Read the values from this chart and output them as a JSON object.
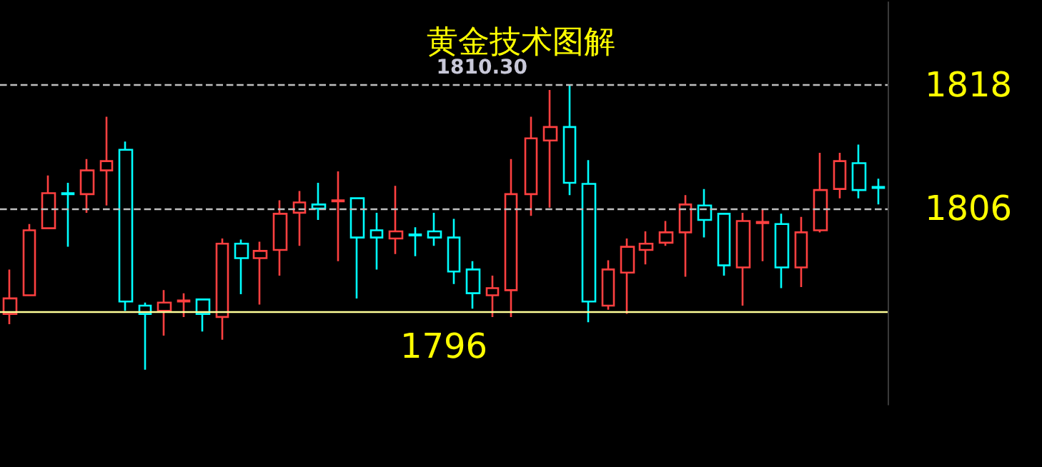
{
  "chart_data": {
    "type": "candlestick",
    "title": "黄金技术图解",
    "categories": [
      null,
      null,
      null,
      null,
      null,
      null,
      null,
      null,
      null,
      null,
      null,
      null,
      null,
      null,
      null,
      null,
      null,
      null,
      null,
      null,
      null,
      null,
      null,
      null,
      null,
      null,
      null,
      null,
      null,
      null,
      null,
      null,
      null,
      null,
      null,
      null,
      null,
      null,
      null,
      null,
      null,
      null,
      null,
      null,
      null,
      null
    ],
    "ohlc": [
      [
        1795.8,
        1800.1,
        1794.8,
        1797.3
      ],
      [
        1797.6,
        1804.5,
        1797.6,
        1803.9
      ],
      [
        1804.1,
        1809.2,
        1804.1,
        1807.5
      ],
      [
        1807.5,
        1808.5,
        1802.3,
        1807.4
      ],
      [
        1807.4,
        1810.8,
        1805.6,
        1809.7
      ],
      [
        1809.7,
        1814.9,
        1806.3,
        1810.6
      ],
      [
        1811.7,
        1812.5,
        1796.1,
        1797.0
      ],
      [
        1796.6,
        1796.9,
        1790.4,
        1795.8
      ],
      [
        1796.1,
        1798.1,
        1793.7,
        1796.9
      ],
      [
        1797.0,
        1797.8,
        1795.5,
        1797.1
      ],
      [
        1797.2,
        1797.3,
        1794.1,
        1795.8
      ],
      [
        1795.5,
        1803.1,
        1793.3,
        1802.6
      ],
      [
        1802.6,
        1803.0,
        1797.7,
        1801.2
      ],
      [
        1801.2,
        1802.8,
        1796.7,
        1801.9
      ],
      [
        1802.0,
        1806.8,
        1799.5,
        1805.5
      ],
      [
        1805.6,
        1807.7,
        1802.4,
        1806.6
      ],
      [
        1806.4,
        1808.5,
        1804.9,
        1806.0
      ],
      [
        1806.7,
        1809.6,
        1800.9,
        1806.8
      ],
      [
        1807.0,
        1807.1,
        1797.3,
        1803.2
      ],
      [
        1803.9,
        1805.6,
        1800.1,
        1803.2
      ],
      [
        1803.1,
        1808.2,
        1801.6,
        1803.8
      ],
      [
        1803.5,
        1804.2,
        1801.4,
        1803.4
      ],
      [
        1803.8,
        1805.6,
        1802.4,
        1803.2
      ],
      [
        1803.2,
        1805.0,
        1798.7,
        1799.9
      ],
      [
        1800.1,
        1800.9,
        1796.3,
        1797.8
      ],
      [
        1797.6,
        1799.5,
        1795.5,
        1798.3
      ],
      [
        1798.1,
        1810.8,
        1795.5,
        1807.4
      ],
      [
        1807.4,
        1814.9,
        1805.3,
        1812.8
      ],
      [
        1812.6,
        1817.5,
        1806.1,
        1813.9
      ],
      [
        1813.9,
        1818.0,
        1807.3,
        1808.5
      ],
      [
        1808.4,
        1810.7,
        1795.0,
        1797.0
      ],
      [
        1796.6,
        1801.0,
        1796.2,
        1800.1
      ],
      [
        1799.8,
        1803.1,
        1795.8,
        1802.3
      ],
      [
        1802.0,
        1803.8,
        1800.6,
        1802.6
      ],
      [
        1802.7,
        1804.8,
        1802.4,
        1803.7
      ],
      [
        1803.7,
        1807.3,
        1799.4,
        1806.4
      ],
      [
        1806.3,
        1807.9,
        1803.2,
        1804.9
      ],
      [
        1805.5,
        1805.6,
        1799.5,
        1800.5
      ],
      [
        1800.3,
        1805.6,
        1796.6,
        1804.8
      ],
      [
        1804.6,
        1805.9,
        1800.9,
        1804.7
      ],
      [
        1804.5,
        1805.5,
        1798.3,
        1800.3
      ],
      [
        1800.3,
        1805.2,
        1798.4,
        1803.7
      ],
      [
        1803.9,
        1811.4,
        1803.7,
        1807.8
      ],
      [
        1807.9,
        1811.4,
        1807.0,
        1810.6
      ],
      [
        1810.4,
        1812.2,
        1807.0,
        1807.8
      ],
      [
        1808.1,
        1808.9,
        1806.4,
        1808.0
      ]
    ],
    "colors": [
      "#ff4040",
      "#ff4040",
      "#ff4040",
      "#00ffff",
      "#ff4040",
      "#ff4040",
      "#00ffff",
      "#00ffff",
      "#ff4040",
      "#ff4040",
      "#00ffff",
      "#ff4040",
      "#00ffff",
      "#ff4040",
      "#ff4040",
      "#ff4040",
      "#00ffff",
      "#ff4040",
      "#00ffff",
      "#00ffff",
      "#ff4040",
      "#00ffff",
      "#00ffff",
      "#00ffff",
      "#00ffff",
      "#ff4040",
      "#ff4040",
      "#ff4040",
      "#ff4040",
      "#00ffff",
      "#00ffff",
      "#ff4040",
      "#ff4040",
      "#ff4040",
      "#ff4040",
      "#ff4040",
      "#00ffff",
      "#00ffff",
      "#ff4040",
      "#ff4040",
      "#00ffff",
      "#ff4040",
      "#ff4040",
      "#ff4040",
      "#00ffff",
      "#00ffff"
    ],
    "ylim": [
      1787,
      1826
    ],
    "yticks": [
      1818,
      1806
    ],
    "tick_labels": "y",
    "grid": "y",
    "line_style": "dashed",
    "ref_lines": [
      {
        "axis": "y",
        "value": 1796,
        "label": "1796",
        "color": "#ffff99",
        "line_style": "solid"
      }
    ],
    "annotations": [
      "1810.30"
    ]
  }
}
